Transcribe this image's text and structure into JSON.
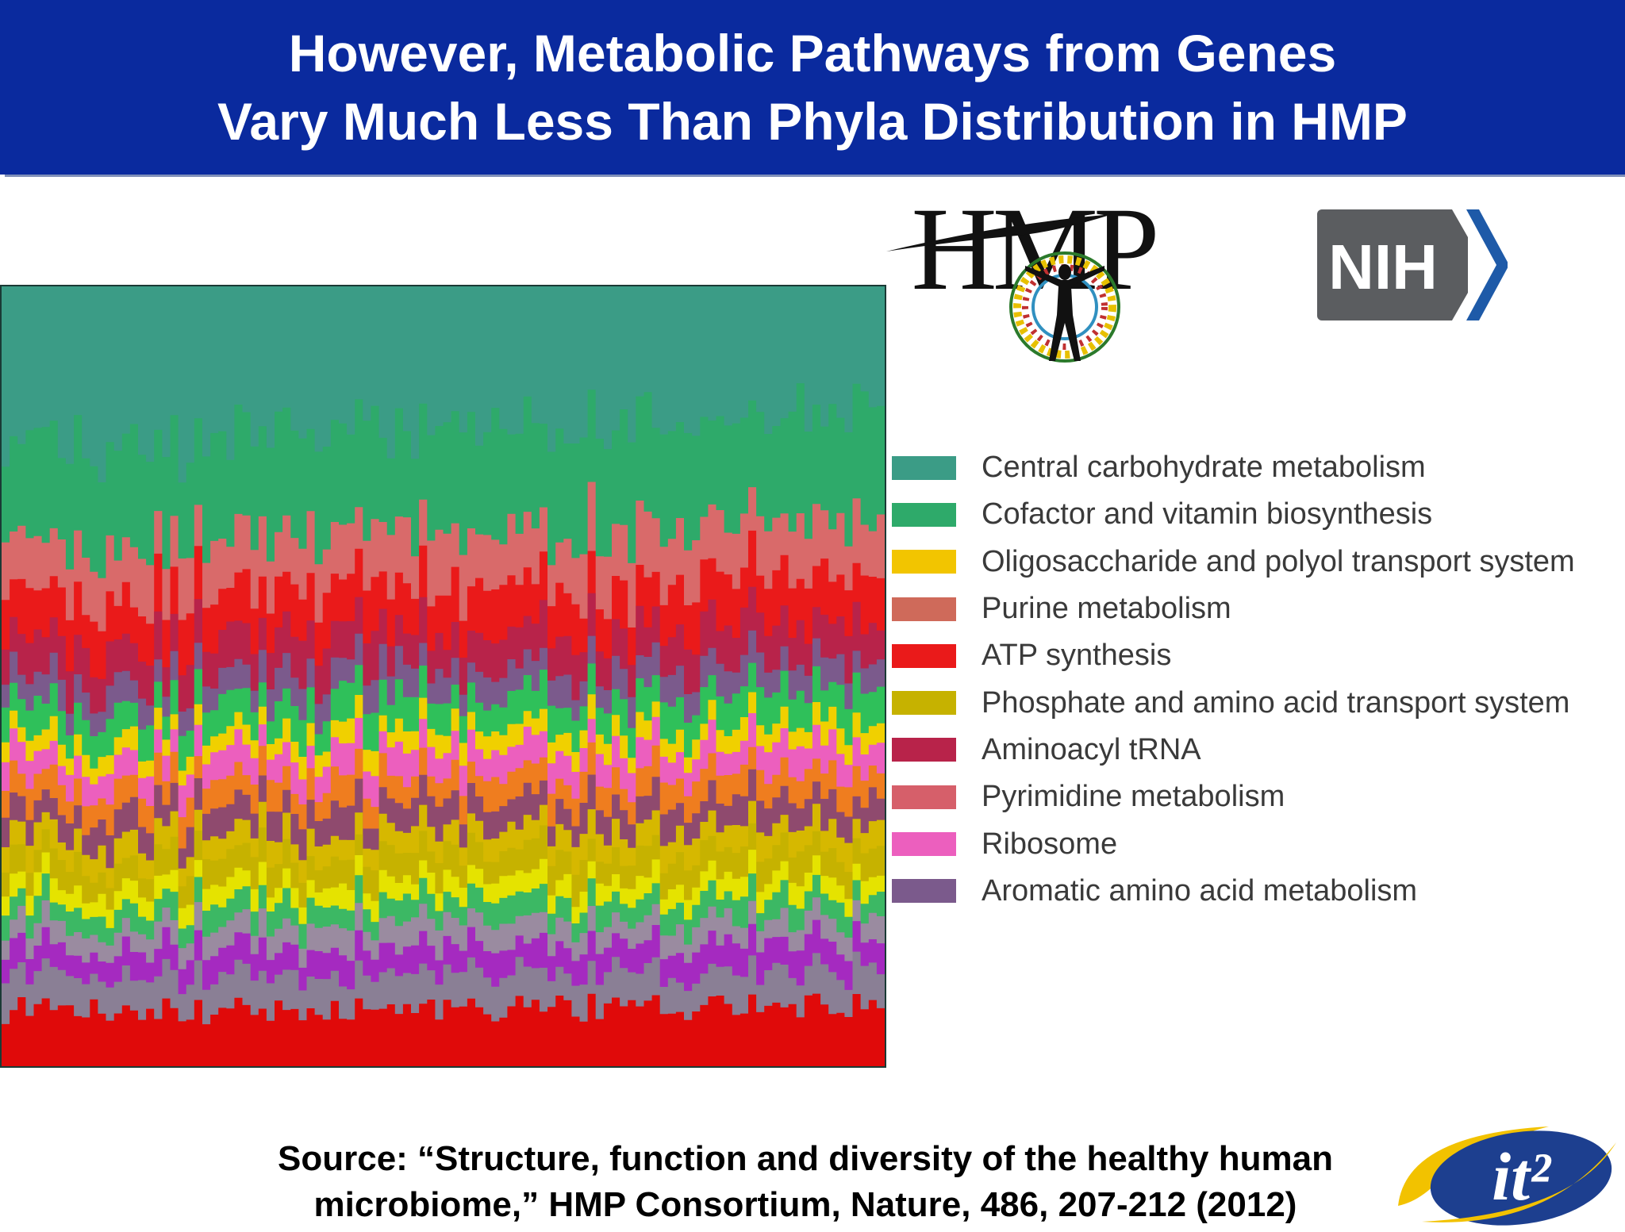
{
  "header": {
    "title_line1": "However, Metabolic Pathways from Genes",
    "title_line2": "Vary Much Less Than Phyla Distribution in HMP"
  },
  "logos": {
    "hmp": "HMP",
    "nih": "NIH",
    "it2": "it²"
  },
  "source": {
    "line1": "Source: “Structure, function and diversity of the healthy human",
    "line2": "microbiome,” HMP Consortium, Nature, 486, 207-212 (2012)"
  },
  "chart_data": {
    "type": "area",
    "stacked": true,
    "normalized": true,
    "samples": 110,
    "legend_position": "right",
    "grid": false,
    "legend": [
      {
        "label": "Central carbohydrate metabolism",
        "color": "#3b9c86"
      },
      {
        "label": "Cofactor and vitamin biosynthesis",
        "color": "#2eaa6a"
      },
      {
        "label": "Oligosaccharide and polyol transport system",
        "color": "#f2c500"
      },
      {
        "label": "Purine metabolism",
        "color": "#cf6a5a"
      },
      {
        "label": "ATP synthesis",
        "color": "#ea1a1a"
      },
      {
        "label": "Phosphate and amino acid transport system",
        "color": "#c6b200"
      },
      {
        "label": "Aminoacyl tRNA",
        "color": "#b8234a"
      },
      {
        "label": "Pyrimidine metabolism",
        "color": "#d65f6a"
      },
      {
        "label": "Ribosome",
        "color": "#ec5fbe"
      },
      {
        "label": "Aromatic amino acid metabolism",
        "color": "#7b5a8c"
      }
    ],
    "bands_bottom_to_top": [
      {
        "color": "#e00a0a",
        "share": 0.075
      },
      {
        "color": "#8a7f95",
        "share": 0.045
      },
      {
        "color": "#a52ac0",
        "share": 0.035
      },
      {
        "color": "#9a8ba0",
        "share": 0.03
      },
      {
        "color": "#3cb864",
        "share": 0.03
      },
      {
        "color": "#e5e300",
        "share": 0.025
      },
      {
        "color": "#c6b200",
        "share": 0.035
      },
      {
        "color": "#d6b800",
        "share": 0.03
      },
      {
        "color": "#8f4a6e",
        "share": 0.035
      },
      {
        "color": "#ef7d1f",
        "share": 0.035
      },
      {
        "color": "#ec5fbe",
        "share": 0.035
      },
      {
        "color": "#f0d000",
        "share": 0.025
      },
      {
        "color": "#2fc05a",
        "share": 0.04
      },
      {
        "color": "#7b5a8c",
        "share": 0.035
      },
      {
        "color": "#b8234a",
        "share": 0.05
      },
      {
        "color": "#ea1a1a",
        "share": 0.06
      },
      {
        "color": "#d96a6a",
        "share": 0.07
      },
      {
        "color": "#2eaa6a",
        "share": 0.13
      },
      {
        "color": "#3b9c86",
        "share": 0.21
      }
    ]
  }
}
